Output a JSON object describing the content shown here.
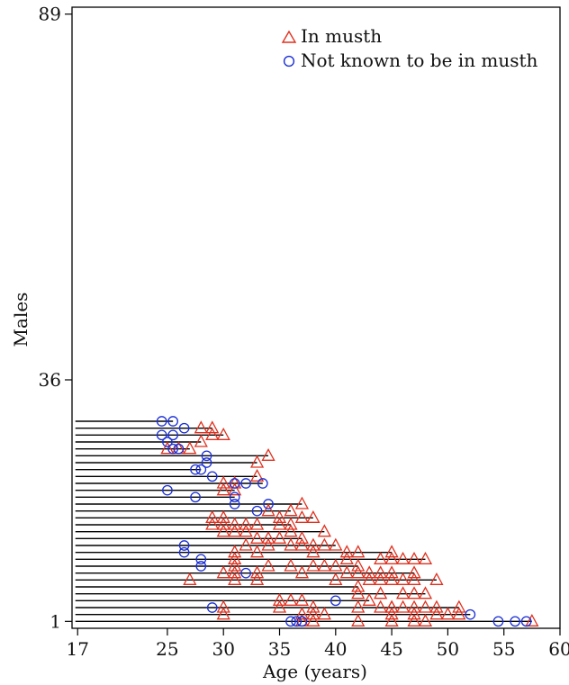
{
  "chart_data": {
    "type": "scatter",
    "xlabel": "Age (years)",
    "ylabel": "Males",
    "x_ticks": [
      {
        "value": 17,
        "label": "17"
      },
      {
        "value": 25,
        "label": "25"
      },
      {
        "value": 30,
        "label": "30"
      },
      {
        "value": 35,
        "label": "35"
      },
      {
        "value": 40,
        "label": "40"
      },
      {
        "value": 45,
        "label": "45"
      },
      {
        "value": 50,
        "label": "50"
      },
      {
        "value": 55,
        "label": "55"
      },
      {
        "value": 60,
        "label": "60"
      }
    ],
    "y_ticks": [
      {
        "value": 1,
        "label": "1"
      },
      {
        "value": 36,
        "label": "36"
      },
      {
        "value": 89,
        "label": "89"
      }
    ],
    "xlim": [
      16.5,
      60
    ],
    "ylim": [
      0,
      90
    ],
    "legend_position": "top-right",
    "colors": {
      "musth": "#e0301e",
      "not_musth": "#1a2fd6",
      "line": "#000000"
    },
    "series": [
      {
        "name": "In musth",
        "marker": "triangle",
        "points": [
          [
            57.5,
            1
          ],
          [
            45,
            1
          ],
          [
            42,
            1
          ],
          [
            37,
            1
          ],
          [
            38,
            1
          ],
          [
            47,
            1
          ],
          [
            48,
            1
          ],
          [
            45,
            2
          ],
          [
            47,
            2
          ],
          [
            49,
            2
          ],
          [
            50,
            2
          ],
          [
            51,
            2
          ],
          [
            37,
            2
          ],
          [
            38,
            2
          ],
          [
            39,
            2
          ],
          [
            30,
            2
          ],
          [
            45,
            3
          ],
          [
            47,
            3
          ],
          [
            48,
            3
          ],
          [
            49,
            3
          ],
          [
            51,
            3
          ],
          [
            30,
            3
          ],
          [
            35,
            3
          ],
          [
            38,
            3
          ],
          [
            42,
            3
          ],
          [
            45,
            3
          ],
          [
            46,
            3
          ],
          [
            44,
            3
          ],
          [
            35,
            4
          ],
          [
            36,
            4
          ],
          [
            37,
            4
          ],
          [
            43,
            4
          ],
          [
            42,
            5
          ],
          [
            44,
            5
          ],
          [
            46,
            5
          ],
          [
            47,
            5
          ],
          [
            48,
            5
          ],
          [
            42,
            6
          ],
          [
            27,
            7
          ],
          [
            31,
            7
          ],
          [
            33,
            7
          ],
          [
            40,
            7
          ],
          [
            43,
            7
          ],
          [
            44,
            7
          ],
          [
            45,
            7
          ],
          [
            46,
            7
          ],
          [
            47,
            7
          ],
          [
            49,
            7
          ],
          [
            30,
            8
          ],
          [
            31,
            8
          ],
          [
            33,
            8
          ],
          [
            37,
            8
          ],
          [
            41,
            8
          ],
          [
            42,
            8
          ],
          [
            43,
            8
          ],
          [
            44,
            8
          ],
          [
            45,
            8
          ],
          [
            47,
            8
          ],
          [
            31,
            9
          ],
          [
            34,
            9
          ],
          [
            36,
            9
          ],
          [
            38,
            9
          ],
          [
            39,
            9
          ],
          [
            40,
            9
          ],
          [
            42,
            9
          ],
          [
            31,
            10
          ],
          [
            41,
            10
          ],
          [
            44,
            10
          ],
          [
            45,
            10
          ],
          [
            46,
            10
          ],
          [
            47,
            10
          ],
          [
            48,
            10
          ],
          [
            31,
            11
          ],
          [
            33,
            11
          ],
          [
            38,
            11
          ],
          [
            41,
            11
          ],
          [
            42,
            11
          ],
          [
            45,
            11
          ],
          [
            32,
            12
          ],
          [
            34,
            12
          ],
          [
            36,
            12
          ],
          [
            37,
            12
          ],
          [
            38,
            12
          ],
          [
            39,
            12
          ],
          [
            40,
            12
          ],
          [
            33,
            13
          ],
          [
            34,
            13
          ],
          [
            35,
            13
          ],
          [
            37,
            13
          ],
          [
            30,
            14
          ],
          [
            31,
            14
          ],
          [
            32,
            14
          ],
          [
            36,
            14
          ],
          [
            39,
            14
          ],
          [
            29,
            15
          ],
          [
            30,
            15
          ],
          [
            31,
            15
          ],
          [
            32,
            15
          ],
          [
            33,
            15
          ],
          [
            35,
            15
          ],
          [
            36,
            15
          ],
          [
            29,
            16
          ],
          [
            30,
            16
          ],
          [
            35,
            16
          ],
          [
            37,
            16
          ],
          [
            38,
            16
          ],
          [
            34,
            17
          ],
          [
            36,
            17
          ],
          [
            37,
            18
          ],
          [
            30,
            20
          ],
          [
            31,
            20
          ],
          [
            31,
            21
          ],
          [
            30,
            21
          ],
          [
            33,
            22
          ],
          [
            33,
            24
          ],
          [
            34,
            25
          ],
          [
            25,
            26
          ],
          [
            26,
            26
          ],
          [
            27,
            26
          ],
          [
            28,
            27
          ],
          [
            29,
            28
          ],
          [
            30,
            28
          ],
          [
            28,
            29
          ],
          [
            29,
            29
          ]
        ]
      },
      {
        "name": "Not known to be in musth",
        "marker": "circle",
        "points": [
          [
            57,
            1
          ],
          [
            56,
            1
          ],
          [
            54.5,
            1
          ],
          [
            37,
            1
          ],
          [
            36.5,
            1
          ],
          [
            36,
            1
          ],
          [
            52,
            2
          ],
          [
            29,
            3
          ],
          [
            40,
            4
          ],
          [
            32,
            8
          ],
          [
            28,
            9
          ],
          [
            28,
            10
          ],
          [
            26.5,
            11
          ],
          [
            26.5,
            12
          ],
          [
            33,
            17
          ],
          [
            31,
            18
          ],
          [
            34,
            18
          ],
          [
            27.5,
            19
          ],
          [
            31,
            19
          ],
          [
            25,
            20
          ],
          [
            33.5,
            21
          ],
          [
            32,
            21
          ],
          [
            31,
            21
          ],
          [
            29,
            22
          ],
          [
            27.5,
            23
          ],
          [
            28,
            23
          ],
          [
            28.5,
            24
          ],
          [
            28.5,
            25
          ],
          [
            25.5,
            26
          ],
          [
            26,
            26
          ],
          [
            25,
            27
          ],
          [
            24.5,
            28
          ],
          [
            25.5,
            28
          ],
          [
            26.5,
            29
          ],
          [
            24.5,
            30
          ],
          [
            25.5,
            30
          ]
        ]
      }
    ]
  },
  "legend": {
    "musth_label": "In musth",
    "not_musth_label": "Not known to be in musth"
  }
}
